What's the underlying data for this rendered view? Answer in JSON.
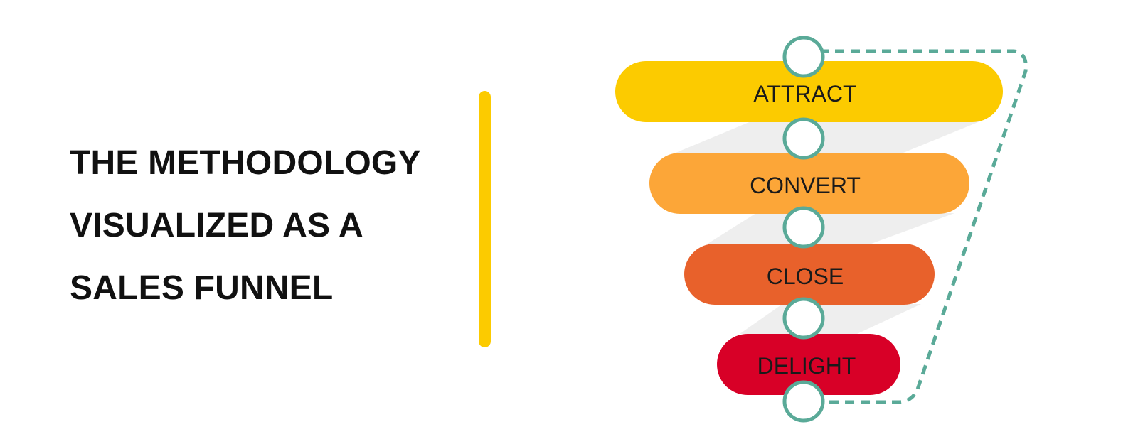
{
  "headline": {
    "lines": [
      "THE METHODOLOGY",
      "VISUALIZED AS A",
      "SALES FUNNEL"
    ]
  },
  "colors": {
    "divider": "#fccb00",
    "connector": "#5aaa98",
    "node_fill": "#ffffff",
    "shadow": "#eeeeee"
  },
  "funnel": {
    "stages": [
      {
        "label": "ATTRACT",
        "color": "#fccb00"
      },
      {
        "label": "CONVERT",
        "color": "#fca638"
      },
      {
        "label": "CLOSE",
        "color": "#e8612b"
      },
      {
        "label": "DELIGHT",
        "color": "#d80027"
      }
    ],
    "node_count": 5
  }
}
